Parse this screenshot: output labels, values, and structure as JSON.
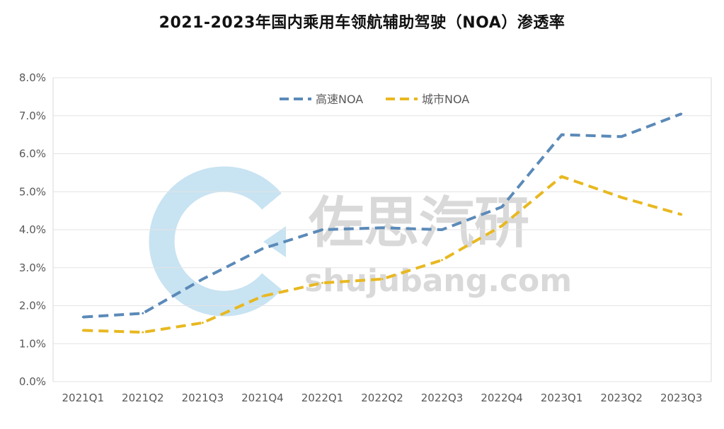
{
  "chart_data": {
    "type": "line",
    "title": "2021-2023年国内乘用车领航辅助驾驶（NOA）渗透率",
    "categories": [
      "2021Q1",
      "2021Q2",
      "2021Q3",
      "2021Q4",
      "2022Q1",
      "2022Q2",
      "2022Q3",
      "2022Q4",
      "2023Q1",
      "2023Q2",
      "2023Q3"
    ],
    "series": [
      {
        "name": "高速NOA",
        "color": "#5b8ab8",
        "values": [
          1.7,
          1.8,
          2.7,
          3.5,
          4.0,
          4.05,
          4.0,
          4.6,
          6.5,
          6.45,
          7.05
        ]
      },
      {
        "name": "城市NOA",
        "color": "#e8b820",
        "values": [
          1.35,
          1.3,
          1.55,
          2.25,
          2.6,
          2.7,
          3.2,
          4.1,
          5.4,
          4.85,
          4.4
        ]
      }
    ],
    "y_ticks": [
      "0.0%",
      "1.0%",
      "2.0%",
      "3.0%",
      "4.0%",
      "5.0%",
      "6.0%",
      "7.0%",
      "8.0%"
    ],
    "ylim": [
      0,
      8
    ],
    "grid": true,
    "legend_position": "top-center",
    "line_style": "dashed"
  },
  "watermark": {
    "text_cn": "佐思汽研",
    "text_url": "shujubang.com",
    "logo": "c-arrow-logo-icon",
    "logo_color": "#c8e3f2",
    "text_color": "#d9d9d9"
  }
}
